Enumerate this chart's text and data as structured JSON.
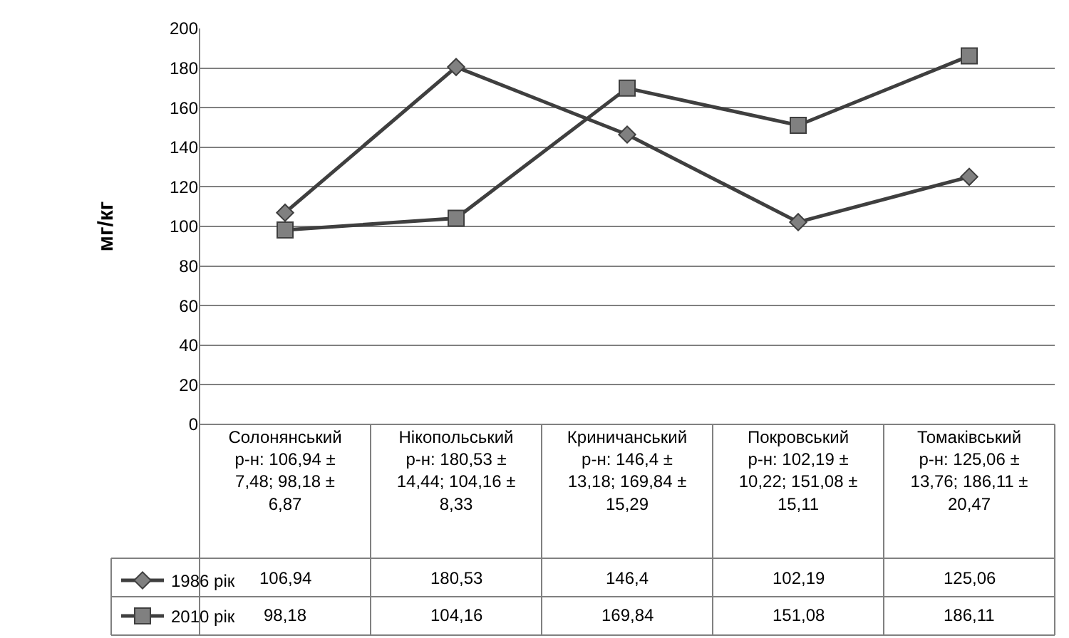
{
  "chart_data": {
    "type": "line",
    "ylabel": "мг/кг",
    "categories": [
      "Солонянський р-н: 106,94 ± 7,48; 98,18 ± 6,87",
      "Нікопольський р-н: 180,53 ± 14,44; 104,16 ± 8,33",
      "Криничанський р-н: 146,4 ± 13,18; 169,84 ± 15,29",
      "Покровський р-н: 102,19 ± 10,22; 151,08 ± 15,11",
      "Томаківський р-н: 125,06 ± 13,76; 186,11 ± 20,47"
    ],
    "series": [
      {
        "name": "1986 рік",
        "color": "#3f3f3f",
        "marker": "diamond",
        "values": [
          106.94,
          180.53,
          146.4,
          102.19,
          125.06
        ],
        "value_labels": [
          "106,94",
          "180,53",
          "146,4",
          "102,19",
          "125,06"
        ]
      },
      {
        "name": "2010 рік",
        "color": "#3f3f3f",
        "marker": "square",
        "values": [
          98.18,
          104.16,
          169.84,
          151.08,
          186.11
        ],
        "value_labels": [
          "98,18",
          "104,16",
          "169,84",
          "151,08",
          "186,11"
        ]
      }
    ],
    "ylim": [
      0,
      200
    ],
    "yticks": [
      0,
      20,
      40,
      60,
      80,
      100,
      120,
      140,
      160,
      180,
      200
    ],
    "grid": "y",
    "legend": "bottom left",
    "line_style": "solid"
  }
}
